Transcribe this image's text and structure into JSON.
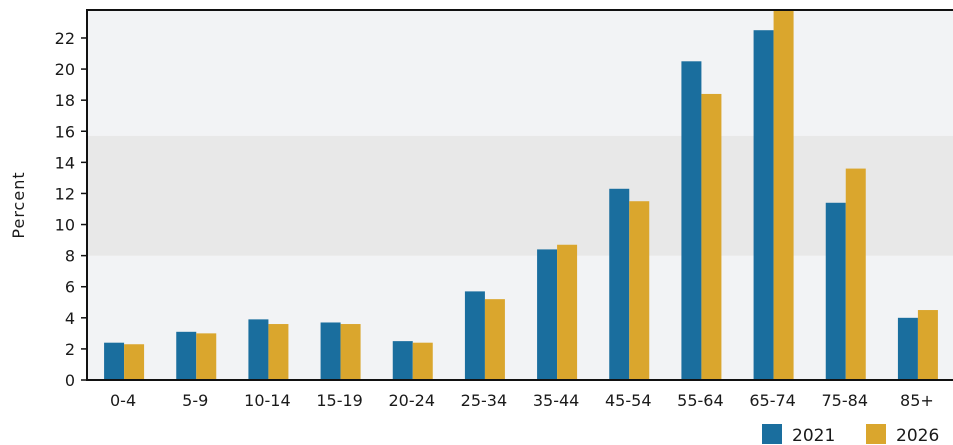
{
  "chart_data": {
    "type": "bar",
    "title": "",
    "xlabel": "",
    "ylabel": "Percent",
    "ylim": [
      0,
      23.8
    ],
    "yticks": [
      0,
      2,
      4,
      6,
      8,
      10,
      12,
      14,
      16,
      18,
      20,
      22
    ],
    "grid": false,
    "shaded_band": [
      8,
      15.7
    ],
    "legend_position": "bottom-right",
    "categories": [
      "0-4",
      "5-9",
      "10-14",
      "15-19",
      "20-24",
      "25-34",
      "35-44",
      "45-54",
      "55-64",
      "65-74",
      "75-84",
      "85+"
    ],
    "series": [
      {
        "name": "2021",
        "color": "#1a6e9e",
        "values": [
          2.4,
          3.1,
          3.9,
          3.7,
          2.5,
          5.7,
          8.4,
          12.3,
          20.5,
          22.5,
          11.4,
          4.0
        ]
      },
      {
        "name": "2026",
        "color": "#daa62d",
        "values": [
          2.3,
          3.0,
          3.6,
          3.6,
          2.4,
          5.2,
          8.7,
          11.5,
          18.4,
          23.8,
          13.6,
          4.5
        ]
      }
    ]
  },
  "colors": {
    "plot_background": "#f2f3f5",
    "band": "#e8e8e8",
    "axis": "#111111"
  }
}
